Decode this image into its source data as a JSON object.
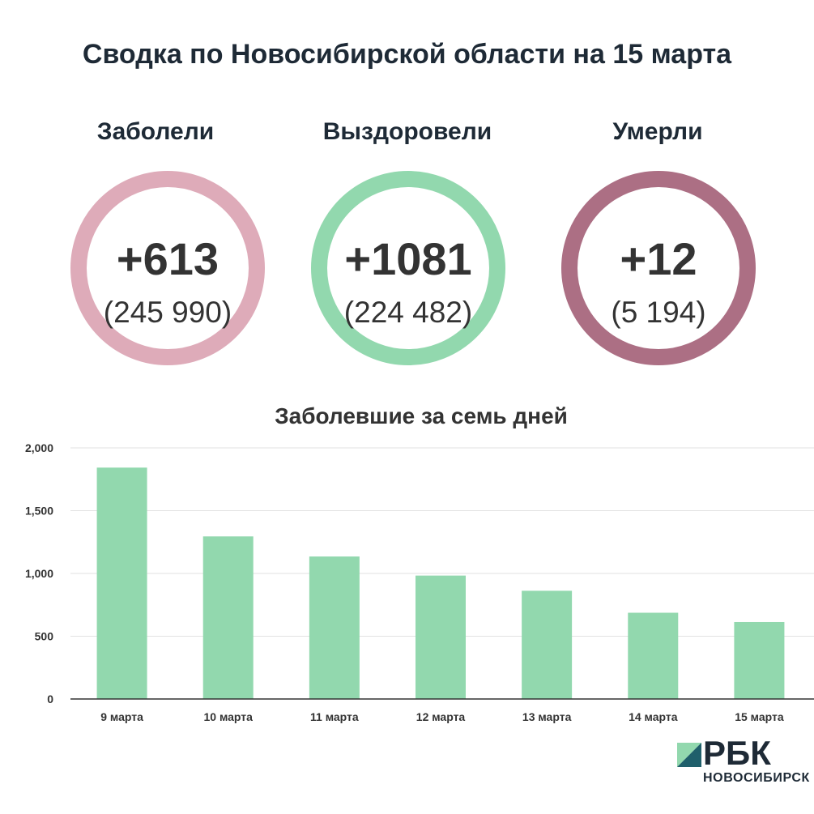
{
  "title": "Сводка по Новосибирской области на 15 марта",
  "stats": [
    {
      "label": "Заболели",
      "value": "+613",
      "total": "(245 990)",
      "color": "#deabb9"
    },
    {
      "label": "Выздоровели",
      "value": "+1081",
      "total": "(224 482)",
      "color": "#92d8ae"
    },
    {
      "label": "Умерли",
      "value": "+12",
      "total": "(5 194)",
      "color": "#ac6f84"
    }
  ],
  "chart_data": {
    "type": "bar",
    "title": "Заболевшие за семь дней",
    "categories": [
      "9 марта",
      "10 марта",
      "11 марта",
      "12 марта",
      "13 марта",
      "14 марта",
      "15 марта"
    ],
    "values": [
      1843,
      1295,
      1135,
      983,
      862,
      687,
      613
    ],
    "ylim": [
      0,
      2000
    ],
    "yticks": [
      0,
      500,
      1000,
      1500,
      2000
    ],
    "ytick_labels": [
      "0",
      "500",
      "1,000",
      "1,500",
      "2,000"
    ],
    "xlabel": "",
    "ylabel": "",
    "grid": true,
    "bar_color": "#92d8ae"
  },
  "logo": {
    "name": "РБК",
    "city": "НОВОСИБИРСК",
    "colors": {
      "light": "#92d8ae",
      "dark": "#1f5f6b"
    }
  }
}
